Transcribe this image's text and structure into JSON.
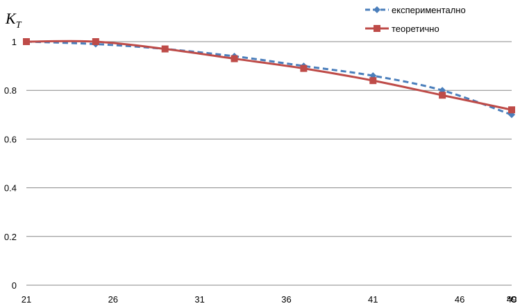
{
  "chart_data": {
    "type": "line",
    "ylabel_main": "K",
    "ylabel_sub": "T",
    "xlabel": "°C",
    "x_ticks": [
      "21",
      "26",
      "31",
      "36",
      "41",
      "46",
      "49"
    ],
    "y_ticks": [
      "0",
      "0.2",
      "0.4",
      "0.6",
      "0.8",
      "1"
    ],
    "xlim": [
      21,
      49
    ],
    "ylim": [
      0,
      1
    ],
    "grid": "horizontal",
    "legend_position": "top-right",
    "series": [
      {
        "name": "експериментално",
        "color": "#4a7ebb",
        "line_style": "dashed",
        "marker": "diamond",
        "x": [
          21,
          25,
          29,
          33,
          37,
          41,
          45,
          49
        ],
        "y": [
          1.0,
          0.99,
          0.97,
          0.94,
          0.9,
          0.86,
          0.8,
          0.7
        ]
      },
      {
        "name": "теоретично",
        "color": "#be4b48",
        "line_style": "solid",
        "marker": "square",
        "x": [
          21,
          25,
          29,
          33,
          37,
          41,
          45,
          49
        ],
        "y": [
          1.0,
          1.0,
          0.97,
          0.93,
          0.89,
          0.84,
          0.78,
          0.72
        ]
      }
    ]
  }
}
